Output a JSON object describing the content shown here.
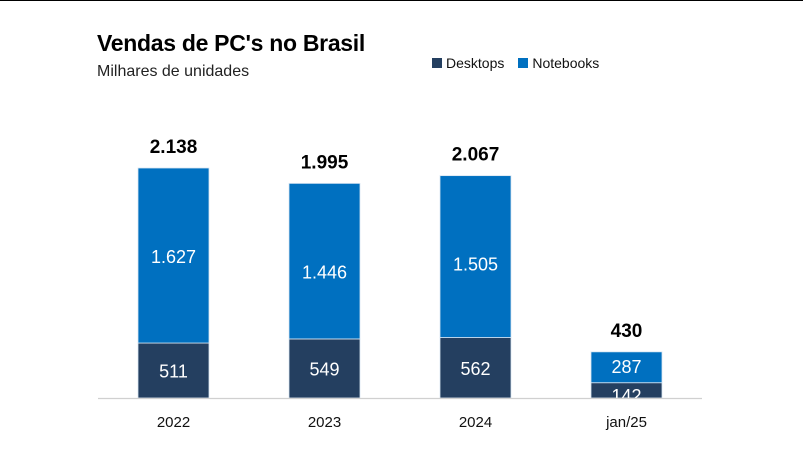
{
  "chart_data": {
    "type": "bar",
    "stacked": true,
    "title": "Vendas de PC's no Brasil",
    "subtitle": "Milhares de unidades",
    "xlabel": "",
    "ylabel": "",
    "categories": [
      "2022",
      "2023",
      "2024",
      "jan/25"
    ],
    "series": [
      {
        "name": "Desktops",
        "color": "#243F60",
        "values": [
          511,
          549,
          562,
          142
        ],
        "labels": [
          "511",
          "549",
          "562",
          "142"
        ]
      },
      {
        "name": "Notebooks",
        "color": "#0070C0",
        "values": [
          1627,
          1446,
          1505,
          287
        ],
        "labels": [
          "1.627",
          "1.446",
          "1.505",
          "287"
        ]
      }
    ],
    "totals": [
      2138,
      1995,
      2067,
      430
    ],
    "total_labels": [
      "2.138",
      "1.995",
      "2.067",
      "430"
    ],
    "ylim": [
      0,
      2138
    ],
    "grid": false,
    "legend_position": "top-right",
    "y_axis_visible": false
  },
  "legend": {
    "items": [
      {
        "label": "Desktops",
        "color": "#243F60"
      },
      {
        "label": "Notebooks",
        "color": "#0070C0"
      }
    ]
  }
}
